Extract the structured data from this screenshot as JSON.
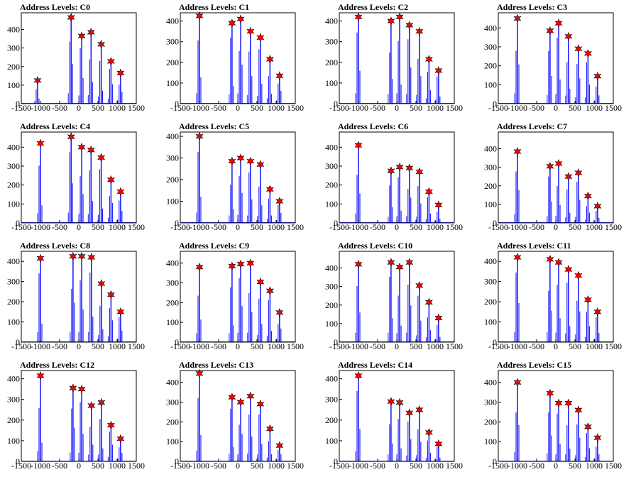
{
  "figure": {
    "colors": {
      "histogram": "#0000ff",
      "peak_marker": "#ff0000",
      "marker_outline": "#000000",
      "axis": "#000000"
    },
    "marker_shape": "star-icon"
  },
  "chart_data": [
    {
      "type": "bar",
      "title": "Address Levels: C0",
      "xlim": [
        -1500,
        1500
      ],
      "ylim": [
        0,
        490
      ],
      "xticks": [
        "-1500",
        "-1000",
        "-500",
        "0",
        "500",
        "1000",
        "1500"
      ],
      "yticks": [
        "0",
        "100",
        "200",
        "300",
        "400"
      ],
      "peaks": [
        {
          "x": -1075,
          "y": 125
        },
        {
          "x": -200,
          "y": 465
        },
        {
          "x": 75,
          "y": 365
        },
        {
          "x": 320,
          "y": 385
        },
        {
          "x": 585,
          "y": 320
        },
        {
          "x": 840,
          "y": 228
        },
        {
          "x": 1090,
          "y": 165
        }
      ]
    },
    {
      "type": "bar",
      "title": "Address Levels: C1",
      "xlim": [
        -1500,
        1500
      ],
      "ylim": [
        0,
        440
      ],
      "xticks": [
        "-1500",
        "-1000",
        "-500",
        "0",
        "500",
        "1000",
        "1500"
      ],
      "yticks": [
        "0",
        "100",
        "200",
        "300",
        "400"
      ],
      "peaks": [
        {
          "x": -1000,
          "y": 425
        },
        {
          "x": -150,
          "y": 390
        },
        {
          "x": 75,
          "y": 410
        },
        {
          "x": 330,
          "y": 350
        },
        {
          "x": 590,
          "y": 320
        },
        {
          "x": 840,
          "y": 215
        },
        {
          "x": 1090,
          "y": 135
        }
      ]
    },
    {
      "type": "bar",
      "title": "Address Levels: C2",
      "xlim": [
        -1500,
        1500
      ],
      "ylim": [
        0,
        440
      ],
      "xticks": [
        "-1500",
        "-1000",
        "-500",
        "0",
        "500",
        "1000",
        "1500"
      ],
      "yticks": [
        "0",
        "100",
        "200",
        "300",
        "400"
      ],
      "peaks": [
        {
          "x": -1000,
          "y": 420
        },
        {
          "x": -150,
          "y": 400
        },
        {
          "x": 75,
          "y": 420
        },
        {
          "x": 330,
          "y": 380
        },
        {
          "x": 590,
          "y": 350
        },
        {
          "x": 840,
          "y": 215
        },
        {
          "x": 1090,
          "y": 160
        }
      ]
    },
    {
      "type": "bar",
      "title": "Address Levels: C3",
      "xlim": [
        -1500,
        1500
      ],
      "ylim": [
        0,
        480
      ],
      "xticks": [
        "-1500",
        "-1000",
        "-500",
        "0",
        "500",
        "1000",
        "1500"
      ],
      "yticks": [
        "0",
        "100",
        "200",
        "300",
        "400"
      ],
      "peaks": [
        {
          "x": -1000,
          "y": 450
        },
        {
          "x": -150,
          "y": 385
        },
        {
          "x": 75,
          "y": 425
        },
        {
          "x": 330,
          "y": 355
        },
        {
          "x": 590,
          "y": 290
        },
        {
          "x": 840,
          "y": 265
        },
        {
          "x": 1090,
          "y": 145
        }
      ]
    },
    {
      "type": "bar",
      "title": "Address Levels: C4",
      "xlim": [
        -1500,
        1500
      ],
      "ylim": [
        0,
        480
      ],
      "xticks": [
        "-1500",
        "-1000",
        "-500",
        "0",
        "500",
        "1000",
        "1500"
      ],
      "yticks": [
        "0",
        "100",
        "200",
        "300",
        "400"
      ],
      "peaks": [
        {
          "x": -1000,
          "y": 420
        },
        {
          "x": -200,
          "y": 455
        },
        {
          "x": 75,
          "y": 400
        },
        {
          "x": 320,
          "y": 385
        },
        {
          "x": 585,
          "y": 345
        },
        {
          "x": 840,
          "y": 228
        },
        {
          "x": 1090,
          "y": 165
        }
      ]
    },
    {
      "type": "bar",
      "title": "Address Levels: C5",
      "xlim": [
        -1500,
        1500
      ],
      "ylim": [
        0,
        420
      ],
      "xticks": [
        "-1500",
        "-1000",
        "-500",
        "0",
        "500",
        "1000",
        "1500"
      ],
      "yticks": [
        "0",
        "100",
        "200",
        "300",
        "400"
      ],
      "peaks": [
        {
          "x": -1000,
          "y": 400
        },
        {
          "x": -150,
          "y": 285
        },
        {
          "x": 75,
          "y": 300
        },
        {
          "x": 330,
          "y": 285
        },
        {
          "x": 590,
          "y": 270
        },
        {
          "x": 840,
          "y": 155
        },
        {
          "x": 1090,
          "y": 100
        }
      ]
    },
    {
      "type": "bar",
      "title": "Address Levels: C6",
      "xlim": [
        -1500,
        1500
      ],
      "ylim": [
        0,
        480
      ],
      "xticks": [
        "-1500",
        "-1000",
        "-500",
        "0",
        "500",
        "1000",
        "1500"
      ],
      "yticks": [
        "0",
        "100",
        "200",
        "300",
        "400"
      ],
      "peaks": [
        {
          "x": -1000,
          "y": 410
        },
        {
          "x": -150,
          "y": 275
        },
        {
          "x": 75,
          "y": 295
        },
        {
          "x": 330,
          "y": 290
        },
        {
          "x": 590,
          "y": 270
        },
        {
          "x": 840,
          "y": 165
        },
        {
          "x": 1090,
          "y": 95
        }
      ]
    },
    {
      "type": "bar",
      "title": "Address Levels: C7",
      "xlim": [
        -1500,
        1500
      ],
      "ylim": [
        0,
        490
      ],
      "xticks": [
        "-1500",
        "-1000",
        "-500",
        "0",
        "500",
        "1000",
        "1500"
      ],
      "yticks": [
        "0",
        "100",
        "200",
        "300",
        "400"
      ],
      "peaks": [
        {
          "x": -1000,
          "y": 385
        },
        {
          "x": -150,
          "y": 305
        },
        {
          "x": 75,
          "y": 320
        },
        {
          "x": 330,
          "y": 250
        },
        {
          "x": 590,
          "y": 270
        },
        {
          "x": 840,
          "y": 145
        },
        {
          "x": 1090,
          "y": 90
        }
      ]
    },
    {
      "type": "bar",
      "title": "Address Levels: C8",
      "xlim": [
        -1500,
        1500
      ],
      "ylim": [
        0,
        450
      ],
      "xticks": [
        "-1500",
        "-1000",
        "-500",
        "0",
        "500",
        "1000",
        "1500"
      ],
      "yticks": [
        "0",
        "100",
        "200",
        "300",
        "400"
      ],
      "peaks": [
        {
          "x": -1000,
          "y": 415
        },
        {
          "x": -150,
          "y": 425
        },
        {
          "x": 75,
          "y": 425
        },
        {
          "x": 330,
          "y": 420
        },
        {
          "x": 590,
          "y": 290
        },
        {
          "x": 840,
          "y": 235
        },
        {
          "x": 1090,
          "y": 150
        }
      ]
    },
    {
      "type": "bar",
      "title": "Address Levels: C9",
      "xlim": [
        -1500,
        1500
      ],
      "ylim": [
        0,
        460
      ],
      "xticks": [
        "-1500",
        "-1000",
        "-500",
        "0",
        "500",
        "1000",
        "1500"
      ],
      "yticks": [
        "0",
        "100",
        "200",
        "300",
        "400"
      ],
      "peaks": [
        {
          "x": -1000,
          "y": 380
        },
        {
          "x": -150,
          "y": 385
        },
        {
          "x": 75,
          "y": 395
        },
        {
          "x": 330,
          "y": 400
        },
        {
          "x": 590,
          "y": 305
        },
        {
          "x": 840,
          "y": 260
        },
        {
          "x": 1090,
          "y": 150
        }
      ]
    },
    {
      "type": "bar",
      "title": "Address Levels: C10",
      "xlim": [
        -1500,
        1500
      ],
      "ylim": [
        0,
        490
      ],
      "xticks": [
        "-1500",
        "-1000",
        "-500",
        "0",
        "500",
        "1000",
        "1500"
      ],
      "yticks": [
        "0",
        "100",
        "200",
        "300",
        "400"
      ],
      "peaks": [
        {
          "x": -1000,
          "y": 420
        },
        {
          "x": -150,
          "y": 430
        },
        {
          "x": 75,
          "y": 405
        },
        {
          "x": 330,
          "y": 430
        },
        {
          "x": 590,
          "y": 305
        },
        {
          "x": 840,
          "y": 215
        },
        {
          "x": 1090,
          "y": 130
        }
      ]
    },
    {
      "type": "bar",
      "title": "Address Levels: C11",
      "xlim": [
        -1500,
        1500
      ],
      "ylim": [
        0,
        450
      ],
      "xticks": [
        "-1500",
        "-1000",
        "-500",
        "0",
        "500",
        "1000",
        "1500"
      ],
      "yticks": [
        "0",
        "100",
        "200",
        "300",
        "400"
      ],
      "peaks": [
        {
          "x": -1000,
          "y": 420
        },
        {
          "x": -150,
          "y": 410
        },
        {
          "x": 75,
          "y": 395
        },
        {
          "x": 330,
          "y": 360
        },
        {
          "x": 590,
          "y": 330
        },
        {
          "x": 840,
          "y": 210
        },
        {
          "x": 1090,
          "y": 150
        }
      ]
    },
    {
      "type": "bar",
      "title": "Address Levels: C12",
      "xlim": [
        -1500,
        1500
      ],
      "ylim": [
        0,
        440
      ],
      "xticks": [
        "-1500",
        "-1000",
        "-500",
        "0",
        "500",
        "1000",
        "1500"
      ],
      "yticks": [
        "0",
        "100",
        "200",
        "300",
        "400"
      ],
      "peaks": [
        {
          "x": -1000,
          "y": 415
        },
        {
          "x": -150,
          "y": 355
        },
        {
          "x": 75,
          "y": 350
        },
        {
          "x": 330,
          "y": 270
        },
        {
          "x": 590,
          "y": 285
        },
        {
          "x": 840,
          "y": 175
        },
        {
          "x": 1090,
          "y": 110
        }
      ]
    },
    {
      "type": "bar",
      "title": "Address Levels: C13",
      "xlim": [
        -1500,
        1500
      ],
      "ylim": [
        0,
        460
      ],
      "xticks": [
        "-1500",
        "-1000",
        "-500",
        "0",
        "500",
        "1000",
        "1500"
      ],
      "yticks": [
        "0",
        "100",
        "200",
        "300",
        "400"
      ],
      "peaks": [
        {
          "x": -1000,
          "y": 445
        },
        {
          "x": -150,
          "y": 325
        },
        {
          "x": 75,
          "y": 300
        },
        {
          "x": 330,
          "y": 330
        },
        {
          "x": 590,
          "y": 290
        },
        {
          "x": 840,
          "y": 165
        },
        {
          "x": 1090,
          "y": 80
        }
      ]
    },
    {
      "type": "bar",
      "title": "Address Levels: C14",
      "xlim": [
        -1500,
        1500
      ],
      "ylim": [
        0,
        440
      ],
      "xticks": [
        "-1500",
        "-1000",
        "-500",
        "0",
        "500",
        "1000",
        "1500"
      ],
      "yticks": [
        "0",
        "100",
        "200",
        "300",
        "400"
      ],
      "peaks": [
        {
          "x": -1000,
          "y": 415
        },
        {
          "x": -150,
          "y": 290
        },
        {
          "x": 75,
          "y": 285
        },
        {
          "x": 330,
          "y": 235
        },
        {
          "x": 590,
          "y": 250
        },
        {
          "x": 840,
          "y": 140
        },
        {
          "x": 1090,
          "y": 85
        }
      ]
    },
    {
      "type": "bar",
      "title": "Address Levels: C15",
      "xlim": [
        -1500,
        1500
      ],
      "ylim": [
        0,
        460
      ],
      "xticks": [
        "-1500",
        "-1000",
        "-500",
        "0",
        "500",
        "1000",
        "1500"
      ],
      "yticks": [
        "0",
        "100",
        "200",
        "300",
        "400"
      ],
      "peaks": [
        {
          "x": -1000,
          "y": 400
        },
        {
          "x": -150,
          "y": 345
        },
        {
          "x": 75,
          "y": 295
        },
        {
          "x": 330,
          "y": 295
        },
        {
          "x": 590,
          "y": 260
        },
        {
          "x": 840,
          "y": 175
        },
        {
          "x": 1090,
          "y": 120
        }
      ]
    }
  ]
}
